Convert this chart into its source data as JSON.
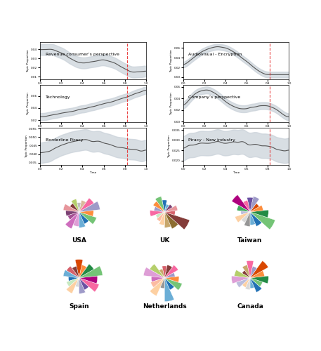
{
  "panel_a_titles": [
    "Revenue consumer’s perspective",
    "Audiovisual - Encryption",
    "Technology",
    "Company’s perspective",
    "Borderline Piracy",
    "Piracy - New industry"
  ],
  "panel_b_labels": [
    "USA",
    "UK",
    "Taiwan",
    "Spain",
    "Netherlands",
    "Canada"
  ],
  "line_color": "#555555",
  "fill_color": "#c8d0d8",
  "dashed_line_color": "#e83030",
  "background_color": "#ffffff",
  "topic_colors": [
    "#6baed6",
    "#2171b5",
    "#74c476",
    "#238b45",
    "#fd8d3c",
    "#d94701",
    "#9e9ac8",
    "#6a51a3",
    "#f768a1",
    "#ae017e",
    "#fc8d59",
    "#e34a33",
    "#c7e9c0",
    "#41ab5d",
    "#bcbddc",
    "#807dba",
    "#fdd0a2",
    "#fdae6b",
    "#d9d9d9",
    "#969696"
  ],
  "rose_colors_usa": [
    "#6baed6",
    "#2171b5",
    "#74c476",
    "#fd8d3c",
    "#9e9ac8",
    "#f768a1",
    "#d9b99b",
    "#c0c0c0",
    "#b5cf6b",
    "#843c39",
    "#e7969c",
    "#7b4173",
    "#a55194",
    "#ce6dbd",
    "#de9ed6"
  ],
  "rose_colors_uk": [
    "#c7a76c",
    "#8c6d31",
    "#843c39",
    "#d6616b",
    "#e7969c",
    "#7b4173",
    "#6baed6",
    "#2171b5",
    "#74c476",
    "#fd8d3c",
    "#9e9ac8",
    "#f768a1",
    "#c7e9c0",
    "#fcbba1",
    "#fdd0a2"
  ],
  "rose_colors_taiwan": [
    "#6baed6",
    "#2171b5",
    "#74c476",
    "#238b45",
    "#fd8d3c",
    "#d94701",
    "#9e9ac8",
    "#6a51a3",
    "#f768a1",
    "#ae017e",
    "#41ab5d",
    "#bcbddc",
    "#fdd0a2",
    "#d9d9d9",
    "#969696"
  ],
  "rose_colors_spain": [
    "#9e9ac8",
    "#6a51a3",
    "#f768a1",
    "#ae017e",
    "#74c476",
    "#238b45",
    "#fd8d3c",
    "#d94701",
    "#843c39",
    "#d6616b",
    "#6baed6",
    "#2171b5",
    "#c7e9c0",
    "#fdd0a2",
    "#d9d9d9"
  ],
  "rose_colors_netherlands": [
    "#6baed6",
    "#2171b5",
    "#74c476",
    "#fd8d3c",
    "#9e9ac8",
    "#f768a1",
    "#843c39",
    "#d6616b",
    "#c7a76c",
    "#b5cf6b",
    "#de9ed6",
    "#ce6dbd",
    "#fcbba1",
    "#fdd0a2",
    "#969696"
  ],
  "rose_colors_canada": [
    "#6baed6",
    "#2171b5",
    "#74c476",
    "#238b45",
    "#fd8d3c",
    "#d94701",
    "#9e9ac8",
    "#f768a1",
    "#c7a76c",
    "#843c39",
    "#b5cf6b",
    "#de9ed6",
    "#bcbddc",
    "#fdd0a2",
    "#d9d9d9"
  ],
  "xlabel": "Time",
  "ylabel": "Topic Proportion"
}
